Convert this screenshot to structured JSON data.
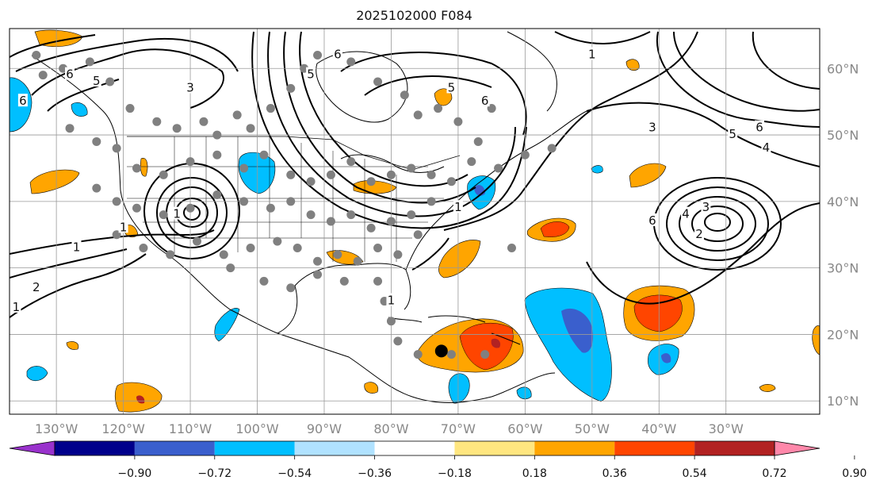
{
  "title": "2025102000 F084",
  "map": {
    "lon_range": [
      -137,
      -16
    ],
    "lat_range": [
      8,
      66
    ],
    "lon_ticks": [
      {
        "lon": -130,
        "label": "130°W"
      },
      {
        "lon": -120,
        "label": "120°W"
      },
      {
        "lon": -110,
        "label": "110°W"
      },
      {
        "lon": -100,
        "label": "100°W"
      },
      {
        "lon": -90,
        "label": "90°W"
      },
      {
        "lon": -80,
        "label": "80°W"
      },
      {
        "lon": -70,
        "label": "70°W"
      },
      {
        "lon": -60,
        "label": "60°W"
      },
      {
        "lon": -50,
        "label": "50°W"
      },
      {
        "lon": -40,
        "label": "40°W"
      },
      {
        "lon": -30,
        "label": "30°W"
      }
    ],
    "lat_ticks": [
      {
        "lat": 60,
        "label": "60°N"
      },
      {
        "lat": 50,
        "label": "50°N"
      },
      {
        "lat": 40,
        "label": "40°N"
      },
      {
        "lat": 30,
        "label": "30°N"
      },
      {
        "lat": 20,
        "label": "20°N"
      },
      {
        "lat": 10,
        "label": "10°N"
      }
    ],
    "grid": true,
    "contour_labels": [
      {
        "text": "6",
        "lon": -128,
        "lat": 59
      },
      {
        "text": "5",
        "lon": -124,
        "lat": 58
      },
      {
        "text": "6",
        "lon": -135,
        "lat": 55
      },
      {
        "text": "3",
        "lon": -110,
        "lat": 57
      },
      {
        "text": "1",
        "lon": -120,
        "lat": 36
      },
      {
        "text": "1",
        "lon": -127,
        "lat": 33
      },
      {
        "text": "2",
        "lon": -133,
        "lat": 27
      },
      {
        "text": "1",
        "lon": -136,
        "lat": 24
      },
      {
        "text": "1",
        "lon": -112,
        "lat": 38
      },
      {
        "text": "6",
        "lon": -88,
        "lat": 62
      },
      {
        "text": "5",
        "lon": -92,
        "lat": 59
      },
      {
        "text": "6",
        "lon": -66,
        "lat": 55
      },
      {
        "text": "5",
        "lon": -71,
        "lat": 57
      },
      {
        "text": "1",
        "lon": -50,
        "lat": 62
      },
      {
        "text": "1",
        "lon": -70,
        "lat": 39
      },
      {
        "text": "1",
        "lon": -80,
        "lat": 25
      },
      {
        "text": "3",
        "lon": -41,
        "lat": 51
      },
      {
        "text": "5",
        "lon": -29,
        "lat": 50
      },
      {
        "text": "6",
        "lon": -25,
        "lat": 51
      },
      {
        "text": "4",
        "lon": -24,
        "lat": 48
      },
      {
        "text": "6",
        "lon": -41,
        "lat": 37
      },
      {
        "text": "4",
        "lon": -36,
        "lat": 38
      },
      {
        "text": "3",
        "lon": -33,
        "lat": 39
      },
      {
        "text": "2",
        "lon": -34,
        "lat": 35
      }
    ],
    "colors": {
      "light_orange": "#ffa500",
      "red_orange": "#ff4500",
      "dark_red": "#b22222",
      "light_blue": "#00bfff",
      "mid_blue": "#3a5fcd",
      "black": "#111111",
      "station_gray": "#808080"
    },
    "stations": [
      [
        -133,
        62
      ],
      [
        -132,
        59
      ],
      [
        -129,
        60
      ],
      [
        -125,
        61
      ],
      [
        -122,
        58
      ],
      [
        -119,
        54
      ],
      [
        -115,
        52
      ],
      [
        -112,
        51
      ],
      [
        -108,
        52
      ],
      [
        -106,
        50
      ],
      [
        -103,
        53
      ],
      [
        -101,
        51
      ],
      [
        -98,
        54
      ],
      [
        -95,
        57
      ],
      [
        -93,
        60
      ],
      [
        -91,
        62
      ],
      [
        -86,
        61
      ],
      [
        -82,
        58
      ],
      [
        -78,
        56
      ],
      [
        -76,
        53
      ],
      [
        -73,
        54
      ],
      [
        -70,
        52
      ],
      [
        -67,
        49
      ],
      [
        -65,
        54
      ],
      [
        -128,
        51
      ],
      [
        -124,
        49
      ],
      [
        -121,
        48
      ],
      [
        -118,
        45
      ],
      [
        -114,
        44
      ],
      [
        -110,
        46
      ],
      [
        -106,
        47
      ],
      [
        -102,
        45
      ],
      [
        -99,
        47
      ],
      [
        -95,
        44
      ],
      [
        -92,
        43
      ],
      [
        -89,
        44
      ],
      [
        -86,
        46
      ],
      [
        -83,
        43
      ],
      [
        -80,
        44
      ],
      [
        -77,
        45
      ],
      [
        -74,
        44
      ],
      [
        -71,
        43
      ],
      [
        -68,
        46
      ],
      [
        -64,
        45
      ],
      [
        -60,
        47
      ],
      [
        -56,
        48
      ],
      [
        -124,
        42
      ],
      [
        -121,
        40
      ],
      [
        -118,
        39
      ],
      [
        -114,
        38
      ],
      [
        -110,
        39
      ],
      [
        -106,
        41
      ],
      [
        -102,
        40
      ],
      [
        -98,
        39
      ],
      [
        -95,
        40
      ],
      [
        -92,
        38
      ],
      [
        -89,
        37
      ],
      [
        -86,
        38
      ],
      [
        -83,
        36
      ],
      [
        -80,
        37
      ],
      [
        -77,
        38
      ],
      [
        -74,
        40
      ],
      [
        -121,
        35
      ],
      [
        -117,
        33
      ],
      [
        -113,
        32
      ],
      [
        -109,
        34
      ],
      [
        -105,
        32
      ],
      [
        -101,
        33
      ],
      [
        -97,
        34
      ],
      [
        -94,
        33
      ],
      [
        -91,
        31
      ],
      [
        -88,
        32
      ],
      [
        -85,
        31
      ],
      [
        -82,
        33
      ],
      [
        -79,
        32
      ],
      [
        -76,
        35
      ],
      [
        -104,
        30
      ],
      [
        -99,
        28
      ],
      [
        -95,
        27
      ],
      [
        -91,
        29
      ],
      [
        -87,
        28
      ],
      [
        -82,
        28
      ],
      [
        -81,
        25
      ],
      [
        -80,
        22
      ],
      [
        -79,
        19
      ],
      [
        -76,
        17
      ],
      [
        -71,
        17
      ],
      [
        -66,
        17
      ],
      [
        -62,
        33
      ]
    ],
    "storm_marker": {
      "lon": -72.5,
      "lat": 17.5,
      "color": "#000000"
    }
  },
  "colorbar": {
    "ticks": [
      "−0.90",
      "−0.72",
      "−0.54",
      "−0.36",
      "−0.18",
      "0.18",
      "0.36",
      "0.54",
      "0.72",
      "0.90"
    ],
    "bins": [
      "#9932cc",
      "#00008b",
      "#3a5fcd",
      "#00bfff",
      "#b0e2ff",
      "#ffffff",
      "#ffe680",
      "#ffa500",
      "#ff4500",
      "#b22222",
      "#ff88aa"
    ]
  }
}
